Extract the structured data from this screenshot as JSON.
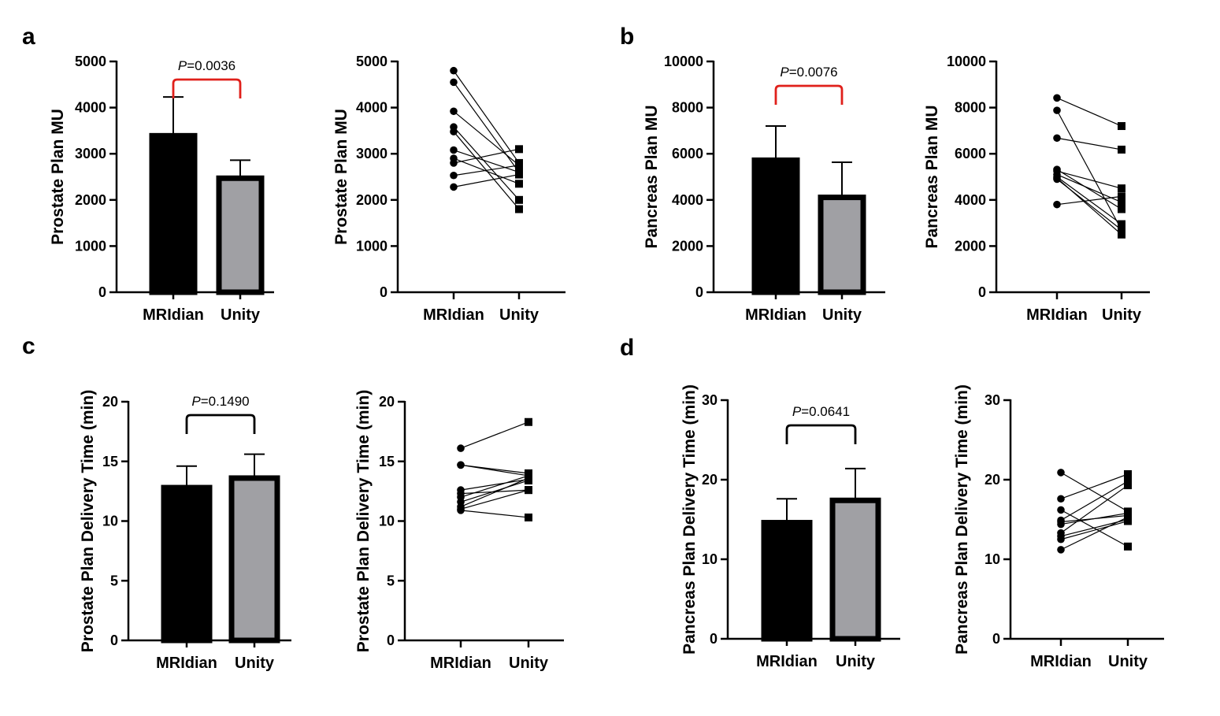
{
  "colors": {
    "bar1": "#000000",
    "bar2": "#a0a0a4",
    "sig": "#e0201b",
    "ns": "#000000"
  },
  "panels": [
    {
      "letter": "a"
    },
    {
      "letter": "b"
    },
    {
      "letter": "c"
    },
    {
      "letter": "d"
    }
  ],
  "chart_data": [
    {
      "type": "bar",
      "panel": "a",
      "categories": [
        "MRIdian",
        "Unity"
      ],
      "values": [
        3390,
        2470
      ],
      "errors": [
        840,
        390
      ],
      "ylabel": "Prostate Plan MU",
      "ylim": [
        0,
        5000
      ],
      "yticks": [
        "0",
        "1000",
        "2000",
        "3000",
        "4000",
        "5000"
      ],
      "pvalue": {
        "prefix": "P",
        "text": "=0.0036",
        "significant": true
      }
    },
    {
      "type": "line",
      "panel": "a",
      "categories": [
        "MRIdian",
        "Unity"
      ],
      "ylabel": "Prostate Plan MU",
      "ylim": [
        0,
        5000
      ],
      "yticks": [
        "0",
        "1000",
        "2000",
        "3000",
        "4000",
        "5000"
      ],
      "pairs": [
        [
          4800,
          2800
        ],
        [
          4550,
          2600
        ],
        [
          3920,
          2750
        ],
        [
          3580,
          2000
        ],
        [
          3480,
          1800
        ],
        [
          3080,
          2600
        ],
        [
          2900,
          2350
        ],
        [
          2800,
          3100
        ],
        [
          2530,
          2750
        ],
        [
          2280,
          2550
        ]
      ]
    },
    {
      "type": "bar",
      "panel": "b",
      "categories": [
        "MRIdian",
        "Unity"
      ],
      "values": [
        5720,
        4110
      ],
      "errors": [
        1480,
        1520
      ],
      "ylabel": "Pancreas Plan MU",
      "ylim": [
        0,
        10000
      ],
      "yticks": [
        "0",
        "2000",
        "4000",
        "6000",
        "8000",
        "10000"
      ],
      "pvalue": {
        "prefix": "P",
        "text": "=0.0076",
        "significant": true
      }
    },
    {
      "type": "line",
      "panel": "b",
      "categories": [
        "MRIdian",
        "Unity"
      ],
      "ylabel": "Pancreas Plan MU",
      "ylim": [
        0,
        10000
      ],
      "yticks": [
        "0",
        "2000",
        "4000",
        "6000",
        "8000",
        "10000"
      ],
      "pairs": [
        [
          8420,
          7200
        ],
        [
          7880,
          2700
        ],
        [
          6680,
          6180
        ],
        [
          5320,
          3600
        ],
        [
          5250,
          4500
        ],
        [
          5100,
          3900
        ],
        [
          5000,
          2950
        ],
        [
          4950,
          2500
        ],
        [
          4900,
          2700
        ],
        [
          3800,
          4150
        ]
      ]
    },
    {
      "type": "bar",
      "panel": "c",
      "categories": [
        "MRIdian",
        "Unity"
      ],
      "values": [
        12.8,
        13.6
      ],
      "errors": [
        1.8,
        2.0
      ],
      "ylabel": "Prostate Plan Delivery Time (min)",
      "ylim": [
        0,
        20
      ],
      "yticks": [
        "0",
        "5",
        "10",
        "15",
        "20"
      ],
      "pvalue": {
        "prefix": "P",
        "text": "=0.1490",
        "significant": false
      }
    },
    {
      "type": "line",
      "panel": "c",
      "categories": [
        "MRIdian",
        "Unity"
      ],
      "ylabel": "Prostate Plan Delivery Time (min)",
      "ylim": [
        0,
        20
      ],
      "yticks": [
        "0",
        "5",
        "10",
        "15",
        "20"
      ],
      "pairs": [
        [
          16.1,
          18.3
        ],
        [
          14.7,
          14.0
        ],
        [
          14.7,
          13.8
        ],
        [
          12.6,
          13.5
        ],
        [
          12.3,
          12.6
        ],
        [
          12.0,
          13.8
        ],
        [
          11.6,
          13.4
        ],
        [
          11.2,
          13.6
        ],
        [
          11.0,
          12.6
        ],
        [
          10.9,
          10.3
        ]
      ]
    },
    {
      "type": "bar",
      "panel": "d",
      "categories": [
        "MRIdian",
        "Unity"
      ],
      "values": [
        14.6,
        17.4
      ],
      "errors": [
        3.0,
        4.0
      ],
      "ylabel": "Pancreas Plan Delivery Time (min)",
      "ylim": [
        0,
        30
      ],
      "yticks": [
        "0",
        "10",
        "20",
        "30"
      ],
      "pvalue": {
        "prefix": "P",
        "text": "=0.0641",
        "significant": false
      }
    },
    {
      "type": "line",
      "panel": "d",
      "categories": [
        "MRIdian",
        "Unity"
      ],
      "ylabel": "Pancreas Plan Delivery Time (min)",
      "ylim": [
        0,
        30
      ],
      "yticks": [
        "0",
        "10",
        "20",
        "30"
      ],
      "pairs": [
        [
          20.9,
          16.0
        ],
        [
          17.6,
          20.7
        ],
        [
          16.2,
          11.6
        ],
        [
          14.9,
          19.8
        ],
        [
          14.7,
          15.5
        ],
        [
          14.4,
          15.8
        ],
        [
          13.3,
          19.3
        ],
        [
          12.9,
          15.0
        ],
        [
          12.5,
          14.8
        ],
        [
          11.2,
          15.3
        ]
      ]
    }
  ]
}
